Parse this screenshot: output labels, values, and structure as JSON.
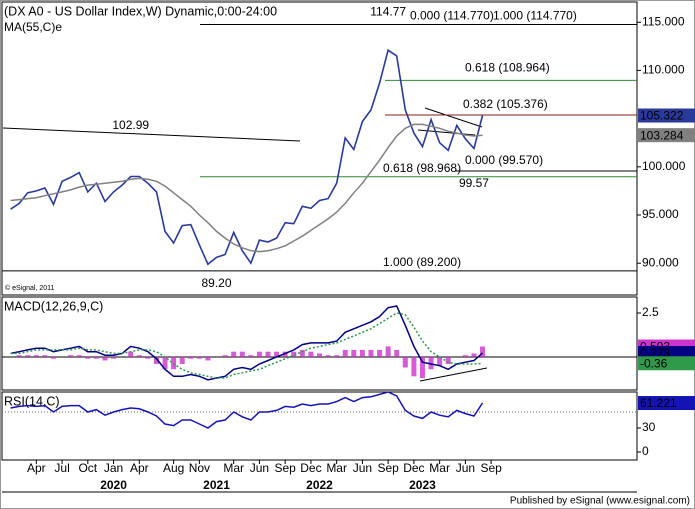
{
  "watermark": "© eSignal, 2011",
  "footer": "Published by eSignal (www.esignal.com)",
  "chart_data": [
    {
      "type": "line",
      "title": "(DX A0 - US Dollar Index,W) Dynamic,0:00-24:00",
      "xlim": [
        "2018-12",
        "2025-02"
      ],
      "ylim": [
        86.7,
        117.1
      ],
      "yticks": [
        {
          "value": 90,
          "label": "90.000"
        },
        {
          "value": 95,
          "label": "95.000"
        },
        {
          "value": 100,
          "label": "100.000"
        },
        {
          "value": 110,
          "label": "110.000"
        },
        {
          "value": 115,
          "label": "115.000"
        }
      ],
      "x": [
        "2019-01",
        "2019-02",
        "2019-03",
        "2019-04",
        "2019-05",
        "2019-06",
        "2019-07",
        "2019-08",
        "2019-09",
        "2019-10",
        "2019-11",
        "2019-12",
        "2020-01",
        "2020-02",
        "2020-03",
        "2020-04",
        "2020-05",
        "2020-06",
        "2020-07",
        "2020-08",
        "2020-09",
        "2020-10",
        "2020-11",
        "2020-12",
        "2021-01",
        "2021-02",
        "2021-03",
        "2021-04",
        "2021-05",
        "2021-06",
        "2021-07",
        "2021-08",
        "2021-09",
        "2021-10",
        "2021-11",
        "2021-12",
        "2022-01",
        "2022-02",
        "2022-03",
        "2022-04",
        "2022-05",
        "2022-06",
        "2022-07",
        "2022-08",
        "2022-09",
        "2022-10",
        "2022-11",
        "2022-12",
        "2023-01",
        "2023-02",
        "2023-03",
        "2023-04",
        "2023-05",
        "2023-06",
        "2023-07",
        "2023-08"
      ],
      "series": [
        {
          "color": "#2a3a9a",
          "values": [
            95.6,
            96.2,
            97.3,
            97.5,
            97.8,
            96.1,
            98.5,
            98.9,
            99.4,
            97.4,
            98.3,
            96.4,
            97.4,
            98.1,
            99.0,
            99.0,
            98.3,
            97.4,
            93.3,
            92.1,
            93.9,
            94.0,
            91.9,
            89.9,
            90.6,
            90.9,
            93.2,
            91.3,
            90.0,
            92.4,
            92.2,
            92.6,
            94.2,
            94.1,
            95.9,
            95.7,
            96.5,
            96.7,
            98.3,
            103.0,
            101.8,
            104.7,
            105.9,
            108.7,
            112.1,
            111.5,
            105.9,
            103.5,
            102.1,
            104.9,
            102.5,
            101.7,
            104.3,
            102.9,
            101.9,
            105.322
          ]
        },
        {
          "name": "MA(55,C)e",
          "color": "#808080",
          "values": [
            96.5,
            96.6,
            96.7,
            96.8,
            97.0,
            97.2,
            97.4,
            97.6,
            97.9,
            98.1,
            98.2,
            98.3,
            98.4,
            98.5,
            98.7,
            98.8,
            98.7,
            98.5,
            98.0,
            97.3,
            96.6,
            95.9,
            95.0,
            94.2,
            93.3,
            92.6,
            92.0,
            91.6,
            91.3,
            91.2,
            91.3,
            91.5,
            91.8,
            92.3,
            92.8,
            93.4,
            94.0,
            94.6,
            95.3,
            96.2,
            97.3,
            98.3,
            99.5,
            100.7,
            102.0,
            103.2,
            104.0,
            104.4,
            104.4,
            104.2,
            104.0,
            103.7,
            103.5,
            103.3,
            103.2,
            103.284
          ]
        }
      ],
      "levels": [
        {
          "value": 114.77,
          "label": "0.000 (114.770)",
          "color": "#000000"
        },
        {
          "value": 114.77,
          "label": "1.000 (114.770)",
          "color": "#000000"
        },
        {
          "value": 108.964,
          "label": "0.618 (108.964)",
          "color": "#2e8b2e"
        },
        {
          "value": 105.376,
          "label": "0.382 (105.376)",
          "color": "#8b1a1a"
        },
        {
          "value": 99.57,
          "label": "0.000 (99.570)",
          "color": "#000000"
        },
        {
          "value": 98.968,
          "label": "0.618 (98.968)",
          "color": "#2e8b2e"
        },
        {
          "value": 89.2,
          "label": "1.000 (89.200)",
          "color": "#000000"
        }
      ],
      "point_labels": [
        {
          "x": "2020-03",
          "value": 102.99,
          "position": "above"
        },
        {
          "x": "2022-09",
          "value": 114.77,
          "position": "above"
        },
        {
          "x": "2021-01",
          "value": 89.2,
          "label": "89.20",
          "position": "below"
        },
        {
          "x": "2023-07",
          "value": 99.57,
          "position": "below"
        }
      ]
    },
    {
      "type": "combo",
      "title": "MACD(12,26,9,C)",
      "xlim": [
        "2018-12",
        "2025-02"
      ],
      "ylim": [
        -1.88,
        3.41
      ],
      "yticks": [
        2.5
      ],
      "zero_line": true,
      "x": [
        "2019-01",
        "2019-02",
        "2019-03",
        "2019-04",
        "2019-05",
        "2019-06",
        "2019-07",
        "2019-08",
        "2019-09",
        "2019-10",
        "2019-11",
        "2019-12",
        "2020-01",
        "2020-02",
        "2020-03",
        "2020-04",
        "2020-05",
        "2020-06",
        "2020-07",
        "2020-08",
        "2020-09",
        "2020-10",
        "2020-11",
        "2020-12",
        "2021-01",
        "2021-02",
        "2021-03",
        "2021-04",
        "2021-05",
        "2021-06",
        "2021-07",
        "2021-08",
        "2021-09",
        "2021-10",
        "2021-11",
        "2021-12",
        "2022-01",
        "2022-02",
        "2022-03",
        "2022-04",
        "2022-05",
        "2022-06",
        "2022-07",
        "2022-08",
        "2022-09",
        "2022-10",
        "2022-11",
        "2022-12",
        "2023-01",
        "2023-02",
        "2023-03",
        "2023-04",
        "2023-05",
        "2023-06",
        "2023-07",
        "2023-08"
      ],
      "series": [
        {
          "kind": "bar",
          "color": "#cc33cc",
          "values": [
            0.0,
            0.1,
            0.1,
            0.1,
            0.1,
            -0.1,
            0.0,
            0.1,
            0.1,
            -0.1,
            -0.1,
            -0.2,
            -0.1,
            0.0,
            0.3,
            0.1,
            -0.1,
            -0.4,
            -0.7,
            -0.7,
            -0.4,
            -0.1,
            -0.1,
            -0.2,
            0.0,
            0.1,
            0.3,
            0.3,
            0.1,
            0.3,
            0.3,
            0.3,
            0.3,
            0.3,
            0.4,
            0.3,
            0.2,
            0.1,
            0.1,
            0.4,
            0.4,
            0.4,
            0.4,
            0.4,
            0.6,
            0.4,
            -0.6,
            -1.1,
            -1.2,
            -0.7,
            -0.5,
            -0.4,
            0.0,
            0.1,
            0.2,
            0.593
          ]
        },
        {
          "kind": "line",
          "color": "#000080",
          "values": [
            0.2,
            0.3,
            0.4,
            0.5,
            0.5,
            0.3,
            0.4,
            0.5,
            0.6,
            0.3,
            0.3,
            0.1,
            0.1,
            0.2,
            0.6,
            0.5,
            0.3,
            -0.1,
            -0.7,
            -1.1,
            -1.1,
            -1.0,
            -1.1,
            -1.3,
            -1.2,
            -1.1,
            -0.7,
            -0.6,
            -0.7,
            -0.4,
            -0.2,
            0.0,
            0.2,
            0.4,
            0.7,
            0.8,
            0.8,
            0.8,
            0.9,
            1.4,
            1.6,
            1.8,
            2.0,
            2.3,
            2.8,
            2.9,
            1.8,
            0.6,
            -0.3,
            -0.4,
            -0.5,
            -0.7,
            -0.4,
            -0.3,
            -0.2,
            0.223
          ]
        },
        {
          "kind": "line",
          "dash": true,
          "color": "#2e9a4a",
          "values": [
            0.2,
            0.2,
            0.3,
            0.4,
            0.4,
            0.4,
            0.4,
            0.4,
            0.5,
            0.4,
            0.4,
            0.3,
            0.2,
            0.2,
            0.3,
            0.4,
            0.4,
            0.3,
            0.0,
            -0.4,
            -0.7,
            -0.9,
            -1.0,
            -1.1,
            -1.2,
            -1.2,
            -1.0,
            -0.9,
            -0.8,
            -0.7,
            -0.5,
            -0.3,
            -0.1,
            0.1,
            0.3,
            0.5,
            0.6,
            0.7,
            0.8,
            1.0,
            1.2,
            1.4,
            1.6,
            1.9,
            2.2,
            2.5,
            2.4,
            1.7,
            0.9,
            0.3,
            0.0,
            -0.3,
            -0.4,
            -0.4,
            -0.4,
            -0.36
          ]
        }
      ]
    },
    {
      "type": "line",
      "title": "RSI(14,C)",
      "xlim": [
        "2018-12",
        "2025-02"
      ],
      "ylim": [
        -10,
        75
      ],
      "yticks": [
        0,
        30
      ],
      "reference_line": 50,
      "x": [
        "2019-01",
        "2019-02",
        "2019-03",
        "2019-04",
        "2019-05",
        "2019-06",
        "2019-07",
        "2019-08",
        "2019-09",
        "2019-10",
        "2019-11",
        "2019-12",
        "2020-01",
        "2020-02",
        "2020-03",
        "2020-04",
        "2020-05",
        "2020-06",
        "2020-07",
        "2020-08",
        "2020-09",
        "2020-10",
        "2020-11",
        "2020-12",
        "2021-01",
        "2021-02",
        "2021-03",
        "2021-04",
        "2021-05",
        "2021-06",
        "2021-07",
        "2021-08",
        "2021-09",
        "2021-10",
        "2021-11",
        "2021-12",
        "2022-01",
        "2022-02",
        "2022-03",
        "2022-04",
        "2022-05",
        "2022-06",
        "2022-07",
        "2022-08",
        "2022-09",
        "2022-10",
        "2022-11",
        "2022-12",
        "2023-01",
        "2023-02",
        "2023-03",
        "2023-04",
        "2023-05",
        "2023-06",
        "2023-07",
        "2023-08"
      ],
      "series": [
        {
          "color": "#1414b4",
          "values": [
            55,
            57,
            58,
            57,
            58,
            50,
            57,
            58,
            58,
            50,
            53,
            46,
            50,
            53,
            55,
            54,
            50,
            45,
            35,
            33,
            40,
            40,
            35,
            30,
            38,
            40,
            50,
            44,
            40,
            50,
            50,
            52,
            57,
            56,
            60,
            58,
            60,
            60,
            63,
            68,
            63,
            68,
            69,
            72,
            75,
            70,
            52,
            45,
            42,
            50,
            46,
            44,
            52,
            48,
            45,
            61.221
          ]
        }
      ],
      "xticks": [
        {
          "value": "2019-04",
          "label": "Apr"
        },
        {
          "value": "2019-07",
          "label": "Jul"
        },
        {
          "value": "2019-10",
          "label": "Oct"
        },
        {
          "value": "2020-01",
          "label": "Jan"
        },
        {
          "value": "2020-04",
          "label": "Apr"
        },
        {
          "value": "2020-08",
          "label": "Aug"
        },
        {
          "value": "2020-11",
          "label": "Nov"
        },
        {
          "value": "2021-03",
          "label": "Mar"
        },
        {
          "value": "2021-06",
          "label": "Jun"
        },
        {
          "value": "2021-09",
          "label": "Sep"
        },
        {
          "value": "2021-12",
          "label": "Dec"
        },
        {
          "value": "2022-03",
          "label": "Mar"
        },
        {
          "value": "2022-06",
          "label": "Jun"
        },
        {
          "value": "2022-09",
          "label": "Sep"
        },
        {
          "value": "2022-12",
          "label": "Dec"
        },
        {
          "value": "2023-03",
          "label": "Mar"
        },
        {
          "value": "2023-06",
          "label": "Jun"
        },
        {
          "value": "2023-09",
          "label": "Sep"
        }
      ],
      "year_ticks": [
        {
          "value": "2020-01",
          "label": "2020"
        },
        {
          "value": "2021-01",
          "label": "2021"
        },
        {
          "value": "2022-01",
          "label": "2022"
        },
        {
          "value": "2023-01",
          "label": "2023"
        }
      ]
    }
  ]
}
